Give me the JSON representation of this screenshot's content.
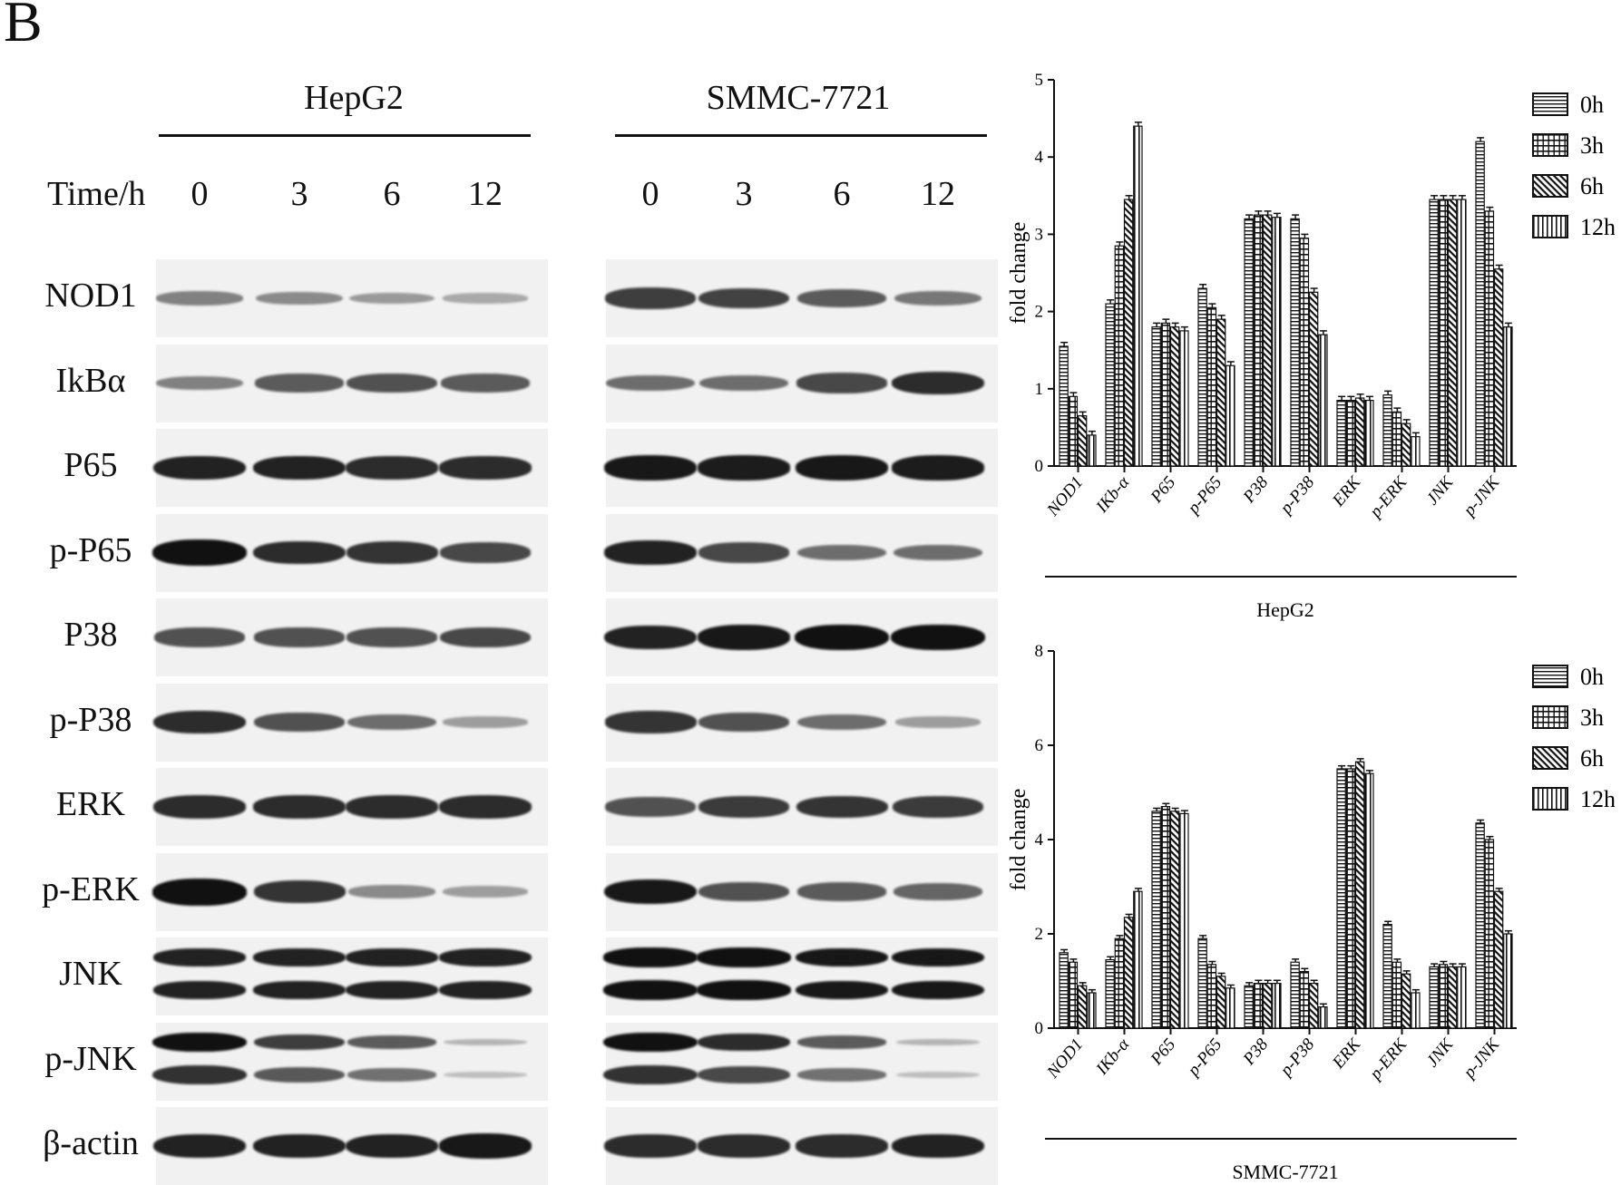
{
  "figure": {
    "panel_label": "B",
    "blot": {
      "cell_lines": [
        "HepG2",
        "SMMC-7721"
      ],
      "time_label": "Time/h",
      "time_points": [
        "0",
        "3",
        "6",
        "12"
      ],
      "proteins": [
        "NOD1",
        "IkBα",
        "P65",
        "p-P65",
        "P38",
        "p-P38",
        "ERK",
        "p-ERK",
        "JNK",
        "p-JNK",
        "β-actin"
      ],
      "band_intensity": {
        "HepG2": [
          [
            0.35,
            0.3,
            0.22,
            0.14
          ],
          [
            0.35,
            0.55,
            0.6,
            0.55
          ],
          [
            0.85,
            0.85,
            0.8,
            0.8
          ],
          [
            0.95,
            0.8,
            0.75,
            0.65
          ],
          [
            0.6,
            0.6,
            0.6,
            0.65
          ],
          [
            0.8,
            0.6,
            0.45,
            0.2
          ],
          [
            0.8,
            0.8,
            0.8,
            0.8
          ],
          [
            1.0,
            0.75,
            0.3,
            0.2
          ],
          [
            0.85,
            0.85,
            0.85,
            0.85
          ],
          [
            0.95,
            0.7,
            0.55,
            0.08
          ],
          [
            0.85,
            0.85,
            0.85,
            0.9
          ]
        ],
        "SMMC-7721": [
          [
            0.7,
            0.68,
            0.55,
            0.4
          ],
          [
            0.45,
            0.45,
            0.65,
            0.8
          ],
          [
            0.9,
            0.88,
            0.9,
            0.88
          ],
          [
            0.85,
            0.65,
            0.45,
            0.45
          ],
          [
            0.85,
            0.9,
            0.95,
            0.95
          ],
          [
            0.75,
            0.6,
            0.45,
            0.2
          ],
          [
            0.6,
            0.72,
            0.75,
            0.72
          ],
          [
            0.9,
            0.6,
            0.55,
            0.5
          ],
          [
            0.95,
            0.95,
            0.9,
            0.9
          ],
          [
            0.95,
            0.8,
            0.55,
            0.08
          ],
          [
            0.8,
            0.8,
            0.8,
            0.85
          ]
        ]
      }
    }
  },
  "chart_data": [
    {
      "type": "bar",
      "xgroup_label": "HepG2",
      "ylabel": "fold change",
      "ylim": [
        0,
        5
      ],
      "yticks": [
        0,
        1,
        2,
        3,
        4,
        5
      ],
      "categories": [
        "NOD1",
        "IKb-α",
        "P65",
        "p-P65",
        "P38",
        "p-P38",
        "ERK",
        "p-ERK",
        "JNK",
        "p-JNK"
      ],
      "series": [
        {
          "name": "0h",
          "values": [
            1.55,
            2.1,
            1.8,
            2.3,
            3.2,
            3.2,
            0.85,
            0.92,
            3.45,
            4.2
          ]
        },
        {
          "name": "3h",
          "values": [
            0.9,
            2.85,
            1.85,
            2.05,
            3.25,
            2.95,
            0.85,
            0.7,
            3.45,
            3.3
          ]
        },
        {
          "name": "6h",
          "values": [
            0.65,
            3.45,
            1.8,
            1.9,
            3.25,
            2.25,
            0.88,
            0.55,
            3.45,
            2.55
          ]
        },
        {
          "name": "12h",
          "values": [
            0.4,
            4.4,
            1.75,
            1.3,
            3.22,
            1.7,
            0.85,
            0.38,
            3.45,
            1.8
          ]
        }
      ],
      "legend": [
        "0h",
        "3h",
        "6h",
        "12h"
      ],
      "legend_position": "right",
      "grid": false
    },
    {
      "type": "bar",
      "xgroup_label": "SMMC-7721",
      "ylabel": "fold change",
      "ylim": [
        0,
        8
      ],
      "yticks": [
        0,
        2,
        4,
        6,
        8
      ],
      "categories": [
        "NOD1",
        "IKb-α",
        "P65",
        "p-P65",
        "P38",
        "p-P38",
        "ERK",
        "p-ERK",
        "JNK",
        "p-JNK"
      ],
      "series": [
        {
          "name": "0h",
          "values": [
            1.6,
            1.45,
            4.6,
            1.9,
            0.9,
            1.4,
            5.5,
            2.2,
            1.3,
            4.35
          ]
        },
        {
          "name": "3h",
          "values": [
            1.4,
            1.9,
            4.7,
            1.35,
            0.95,
            1.2,
            5.5,
            1.4,
            1.35,
            4.0
          ]
        },
        {
          "name": "6h",
          "values": [
            0.9,
            2.35,
            4.6,
            1.1,
            0.95,
            0.95,
            5.65,
            1.15,
            1.3,
            2.9
          ]
        },
        {
          "name": "12h",
          "values": [
            0.75,
            2.9,
            4.55,
            0.85,
            0.95,
            0.45,
            5.4,
            0.75,
            1.3,
            2.0
          ]
        }
      ],
      "legend": [
        "0h",
        "3h",
        "6h",
        "12h"
      ],
      "legend_position": "right",
      "grid": false
    }
  ]
}
